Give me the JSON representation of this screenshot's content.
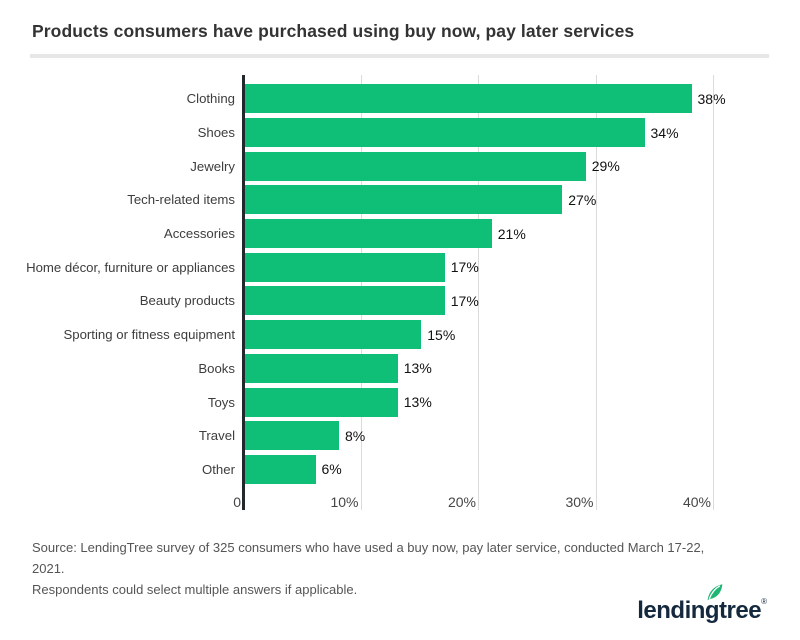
{
  "header": {
    "title": "Products consumers have purchased using buy now, pay later services"
  },
  "chart_data": {
    "type": "bar",
    "orientation": "horizontal",
    "title": "Products consumers have purchased using buy now, pay later services",
    "categories": [
      "Clothing",
      "Shoes",
      "Jewelry",
      "Tech-related items",
      "Accessories",
      "Home décor, furniture or appliances",
      "Beauty products",
      "Sporting or fitness equipment",
      "Books",
      "Toys",
      "Travel",
      "Other"
    ],
    "values": [
      38,
      34,
      29,
      27,
      21,
      17,
      17,
      15,
      13,
      13,
      8,
      6
    ],
    "value_suffix": "%",
    "xlabel": "",
    "ylabel": "",
    "xlim": [
      0,
      44
    ],
    "grid": true,
    "ticks": [
      {
        "label": "0",
        "pct": 0
      },
      {
        "label": "10%",
        "pct": 10
      },
      {
        "label": "20%",
        "pct": 20
      },
      {
        "label": "30%",
        "pct": 30
      },
      {
        "label": "40%",
        "pct": 40
      }
    ],
    "bar_color": "#0fbe77",
    "axis_color": "#23282d"
  },
  "source": {
    "line1": "Source: LendingTree survey of 325 consumers who have used a buy now, pay later service, conducted March 17-22, 2021.",
    "line2": "Respondents could select multiple answers if applicable."
  },
  "logo": {
    "text": "lendingtree",
    "registered": "®",
    "text_color": "#15293e",
    "leaf_color": "#21b573"
  }
}
